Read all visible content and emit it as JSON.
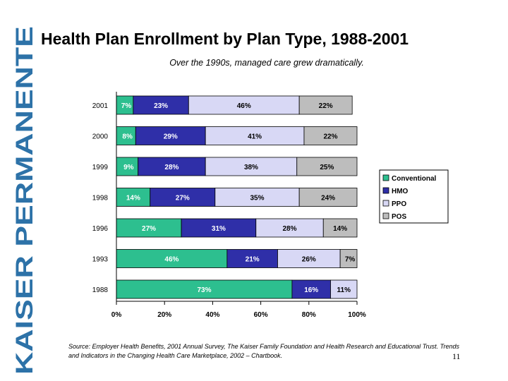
{
  "brand": {
    "text": "KAISER PERMANENTE",
    "color": "#2d72a8"
  },
  "title": "Health Plan Enrollment by Plan Type, 1988-2001",
  "subtitle": "Over the 1990s, managed care grew dramatically.",
  "source": {
    "label": "Source:",
    "text": " Employer Health Benefits, 2001 Annual Survey, The Kaiser Family Foundation and Health Research and Educational Trust. Trends and Indicators in the Changing Health Care Marketplace, 2002 – Chartbook."
  },
  "page_number": "11",
  "chart_data": {
    "type": "bar",
    "orientation": "horizontal",
    "stacked": true,
    "title": "Health Plan Enrollment by Plan Type, 1988-2001",
    "xlabel": "",
    "ylabel": "",
    "xlim": [
      0,
      100
    ],
    "x_ticks": [
      "0%",
      "20%",
      "40%",
      "60%",
      "80%",
      "100%"
    ],
    "legend_position": "right",
    "categories": [
      "2001",
      "2000",
      "1999",
      "1998",
      "1996",
      "1993",
      "1988"
    ],
    "series": [
      {
        "name": "Conventional",
        "color": "#2dbf8f",
        "values": [
          7,
          8,
          9,
          14,
          27,
          46,
          73
        ],
        "labels": [
          "7%",
          "8%",
          "9%",
          "14%",
          "27%",
          "46%",
          "73%"
        ]
      },
      {
        "name": "HMO",
        "color": "#2f2fa8",
        "values": [
          23,
          29,
          28,
          27,
          31,
          21,
          16
        ],
        "labels": [
          "23%",
          "29%",
          "28%",
          "27%",
          "31%",
          "21%",
          "16%"
        ]
      },
      {
        "name": "PPO",
        "color": "#d8d8f5",
        "values": [
          46,
          41,
          38,
          35,
          28,
          26,
          11
        ],
        "labels": [
          "46%",
          "41%",
          "38%",
          "35%",
          "28%",
          "26%",
          "11%"
        ]
      },
      {
        "name": "POS",
        "color": "#bdbdbd",
        "values": [
          22,
          22,
          25,
          24,
          14,
          7,
          0
        ],
        "labels": [
          "22%",
          "22%",
          "25%",
          "24%",
          "14%",
          "7%",
          ""
        ]
      }
    ]
  }
}
